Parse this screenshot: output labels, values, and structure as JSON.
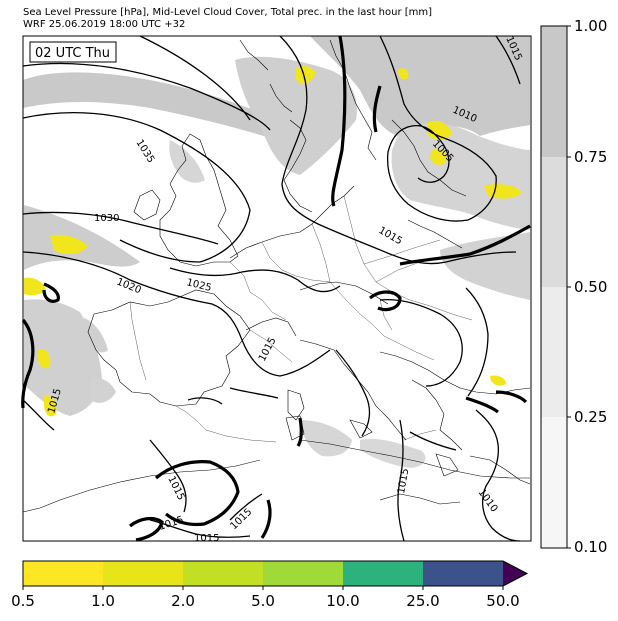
{
  "header": {
    "title_line1": "Sea Level Pressure [hPa], Mid-Level Cloud Cover, Total prec. in the last hour [mm]",
    "title_line2": "WRF 25.06.2019 18:00 UTC +32"
  },
  "map": {
    "time_label": "02 UTC Thu",
    "isobar_labels": [
      "1035",
      "1030",
      "1020",
      "1025",
      "1015",
      "1010",
      "1005",
      "1015",
      "1015",
      "1015",
      "1015",
      "1010",
      "1015",
      "1015",
      "1015",
      "1015"
    ]
  },
  "cloud_colorbar": {
    "ticks": [
      "1.00",
      "0.75",
      "0.50",
      "0.25",
      "0.10"
    ],
    "colors": [
      "#c8c8c8",
      "#dcdcdc",
      "#ececec",
      "#f6f6f6"
    ]
  },
  "precip_colorbar": {
    "ticks": [
      "0.5",
      "1.0",
      "2.0",
      "5.0",
      "10.0",
      "25.0",
      "50.0"
    ],
    "colors": [
      "#fde725",
      "#e7e419",
      "#c2df23",
      "#a0da39",
      "#2db27d",
      "#3b528b",
      "#440154"
    ]
  }
}
